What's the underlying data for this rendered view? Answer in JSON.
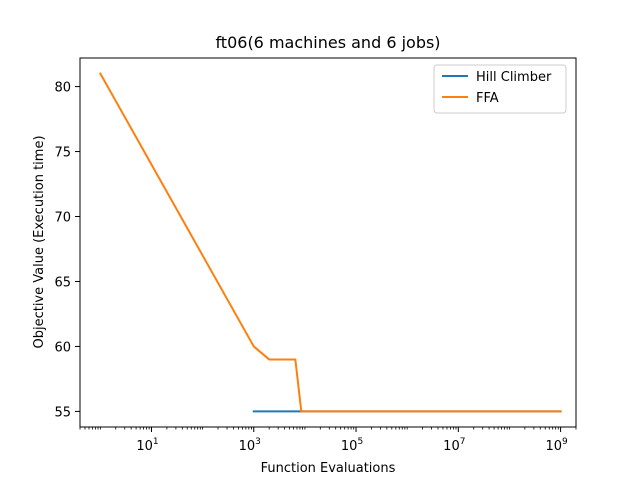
{
  "chart_data": {
    "type": "line",
    "title": "ft06(6 machines and 6 jobs)",
    "xlabel": "Function Evaluations",
    "ylabel": "Objective Value (Execution time)",
    "xscale": "log",
    "xlim": [
      0.4,
      2000000000
    ],
    "ylim": [
      53.8,
      82.2
    ],
    "xticks": [
      10,
      1000,
      100000,
      10000000,
      1000000000
    ],
    "xtick_labels": [
      {
        "base": "10",
        "exp": "1"
      },
      {
        "base": "10",
        "exp": "3"
      },
      {
        "base": "10",
        "exp": "5"
      },
      {
        "base": "10",
        "exp": "7"
      },
      {
        "base": "10",
        "exp": "9"
      }
    ],
    "yticks": [
      55,
      60,
      65,
      70,
      75,
      80
    ],
    "ytick_labels": [
      "55",
      "60",
      "65",
      "70",
      "75",
      "80"
    ],
    "grid": false,
    "legend_position": "top-right",
    "series": [
      {
        "name": "Hill Climber",
        "color": "#1f77b4",
        "x": [
          1000,
          1000000000
        ],
        "y": [
          55,
          55
        ]
      },
      {
        "name": "FFA",
        "color": "#ff7f0e",
        "x": [
          1,
          1000,
          2000,
          6500,
          8500,
          1000000000
        ],
        "y": [
          81,
          60,
          59,
          59,
          55,
          55
        ]
      }
    ]
  }
}
